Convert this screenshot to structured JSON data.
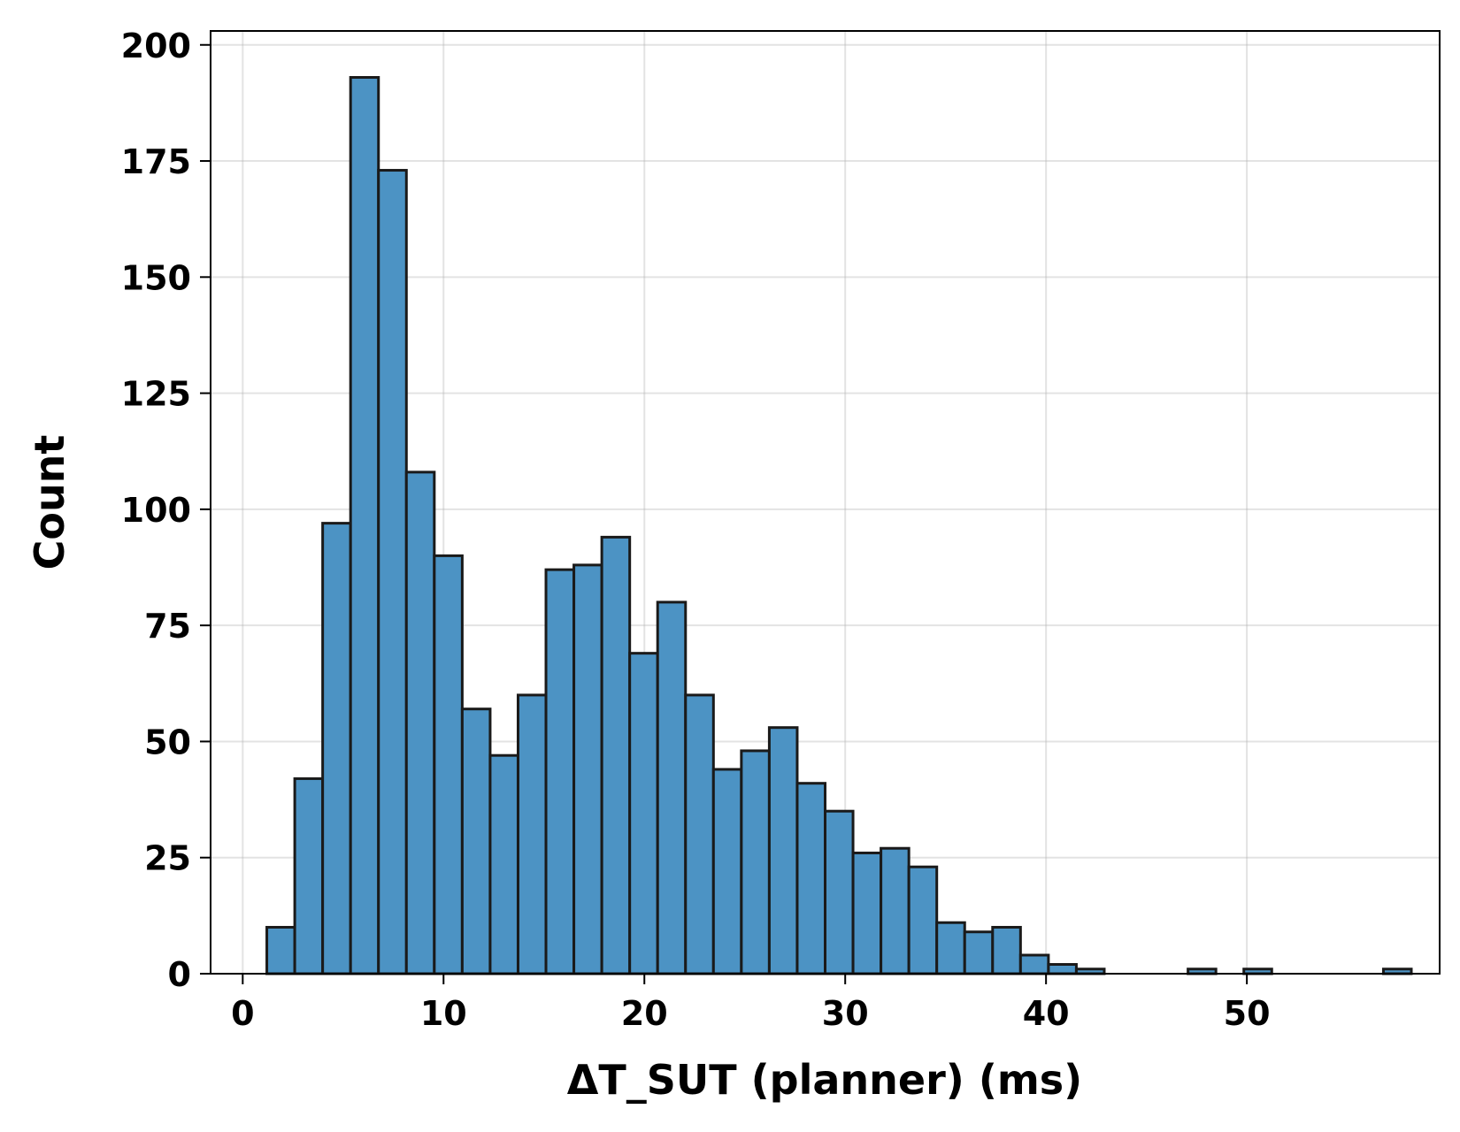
{
  "chart_data": {
    "type": "bar",
    "title": "",
    "xlabel": "ΔT_SUT (planner) (ms)",
    "ylabel": "Count",
    "bin_start": 1.2,
    "bin_width": 1.39,
    "counts": [
      10,
      42,
      97,
      193,
      173,
      108,
      90,
      57,
      47,
      60,
      87,
      88,
      94,
      69,
      80,
      60,
      44,
      48,
      53,
      41,
      35,
      26,
      27,
      23,
      11,
      9,
      10,
      4,
      2,
      1,
      0,
      0,
      0,
      1,
      0,
      1,
      0,
      0,
      0,
      0,
      1
    ],
    "xlim": [
      -1.6,
      59.6
    ],
    "ylim": [
      0,
      203
    ],
    "xticks": [
      0,
      10,
      20,
      30,
      40,
      50
    ],
    "yticks": [
      0,
      25,
      50,
      75,
      100,
      125,
      150,
      175,
      200
    ],
    "grid": true,
    "bar_color": "#4c93c4",
    "edge_color": "#1a1a1a"
  }
}
